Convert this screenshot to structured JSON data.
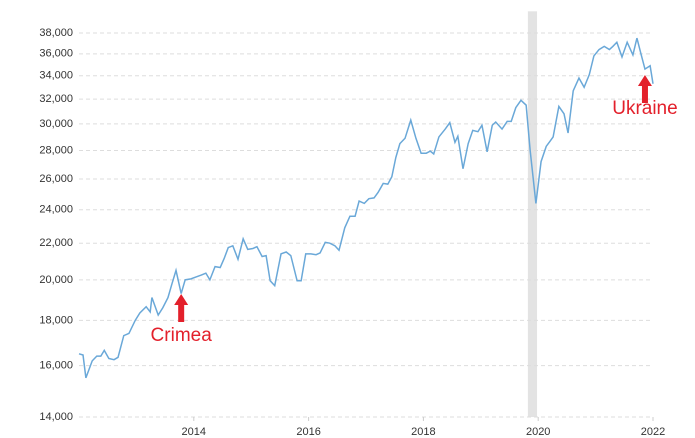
{
  "chart_data": {
    "type": "line",
    "log_scale": true,
    "grid": true,
    "x": [
      2012.0,
      2012.07,
      2012.12,
      2012.23,
      2012.31,
      2012.38,
      2012.44,
      2012.52,
      2012.61,
      2012.68,
      2012.78,
      2012.87,
      2012.98,
      2013.06,
      2013.17,
      2013.24,
      2013.27,
      2013.38,
      2013.46,
      2013.55,
      2013.62,
      2013.69,
      2013.78,
      2013.85,
      2013.95,
      2014.04,
      2014.13,
      2014.21,
      2014.28,
      2014.37,
      2014.46,
      2014.53,
      2014.6,
      2014.68,
      2014.77,
      2014.86,
      2014.94,
      2015.03,
      2015.1,
      2015.19,
      2015.26,
      2015.33,
      2015.41,
      2015.52,
      2015.61,
      2015.69,
      2015.8,
      2015.87,
      2015.95,
      2016.04,
      2016.13,
      2016.2,
      2016.29,
      2016.37,
      2016.46,
      2016.53,
      2016.63,
      2016.72,
      2016.81,
      2016.88,
      2016.97,
      2017.05,
      2017.14,
      2017.21,
      2017.3,
      2017.38,
      2017.45,
      2017.52,
      2017.59,
      2017.68,
      2017.78,
      2017.87,
      2017.96,
      2018.05,
      2018.12,
      2018.18,
      2018.27,
      2018.38,
      2018.46,
      2018.55,
      2018.6,
      2018.69,
      2018.78,
      2018.86,
      2018.95,
      2019.02,
      2019.11,
      2019.2,
      2019.26,
      2019.37,
      2019.46,
      2019.53,
      2019.61,
      2019.7,
      2019.79,
      2019.86,
      2019.96,
      2020.05,
      2020.14,
      2020.21,
      2020.26,
      2020.36,
      2020.45,
      2020.52,
      2020.61,
      2020.71,
      2020.8,
      2020.89,
      2020.97,
      2021.06,
      2021.15,
      2021.24,
      2021.3,
      2021.37,
      2021.46,
      2021.55,
      2021.65,
      2021.72,
      2021.79,
      2021.86,
      2021.95,
      2022.0
    ],
    "series": [
      {
        "color": "#6aa8d8",
        "values": [
          16500,
          16450,
          15500,
          16200,
          16400,
          16400,
          16650,
          16300,
          16250,
          16350,
          17300,
          17400,
          18000,
          18350,
          18650,
          18400,
          19100,
          18250,
          18600,
          19100,
          19800,
          20500,
          19300,
          20000,
          20050,
          20150,
          20250,
          20350,
          20000,
          20700,
          20650,
          21150,
          21750,
          21850,
          21100,
          22250,
          21650,
          21700,
          21800,
          21250,
          21300,
          19950,
          19700,
          21400,
          21500,
          21300,
          19950,
          19950,
          21400,
          21400,
          21350,
          21450,
          22050,
          22000,
          21850,
          21600,
          22900,
          23600,
          23600,
          24550,
          24400,
          24700,
          24750,
          25100,
          25700,
          25650,
          26150,
          27500,
          28500,
          28900,
          30300,
          28900,
          27800,
          27800,
          27950,
          27750,
          29000,
          29600,
          30100,
          28600,
          29050,
          26700,
          28500,
          29500,
          29400,
          29900,
          27900,
          29900,
          30150,
          29600,
          30200,
          30200,
          31300,
          31900,
          31500,
          28000,
          24400,
          27200,
          28300,
          28700,
          29000,
          31400,
          30800,
          29300,
          32700,
          33800,
          33000,
          34100,
          35800,
          36400,
          36700,
          36400,
          36700,
          37100,
          35700,
          37100,
          35900,
          37500,
          36000,
          34600,
          34900,
          33300
        ]
      }
    ],
    "xlim": [
      2012,
      2022
    ],
    "xticks": [
      2014,
      2016,
      2018,
      2020,
      2022
    ],
    "ylim": [
      14000,
      40000
    ],
    "yticks": [
      {
        "value": 14000,
        "label": "14,000"
      },
      {
        "value": 16000,
        "label": "16,000"
      },
      {
        "value": 18000,
        "label": "18,000"
      },
      {
        "value": 20000,
        "label": "20,000"
      },
      {
        "value": 22000,
        "label": "22,000"
      },
      {
        "value": 24000,
        "label": "24,000"
      },
      {
        "value": 26000,
        "label": "26,000"
      },
      {
        "value": 28000,
        "label": "28,000"
      },
      {
        "value": 30000,
        "label": "30,000"
      },
      {
        "value": 32000,
        "label": "32,000"
      },
      {
        "value": 34000,
        "label": "34,000"
      },
      {
        "value": 36000,
        "label": "36,000"
      },
      {
        "value": 38000,
        "label": "38,000"
      }
    ],
    "recession": {
      "start": 2019.82,
      "end": 2019.98
    },
    "annotations": [
      {
        "text": "Crimea",
        "x": 2013.78,
        "color": "#e3202b"
      },
      {
        "text": "Ukraine",
        "x": 2021.86,
        "color": "#e3202b"
      }
    ]
  }
}
